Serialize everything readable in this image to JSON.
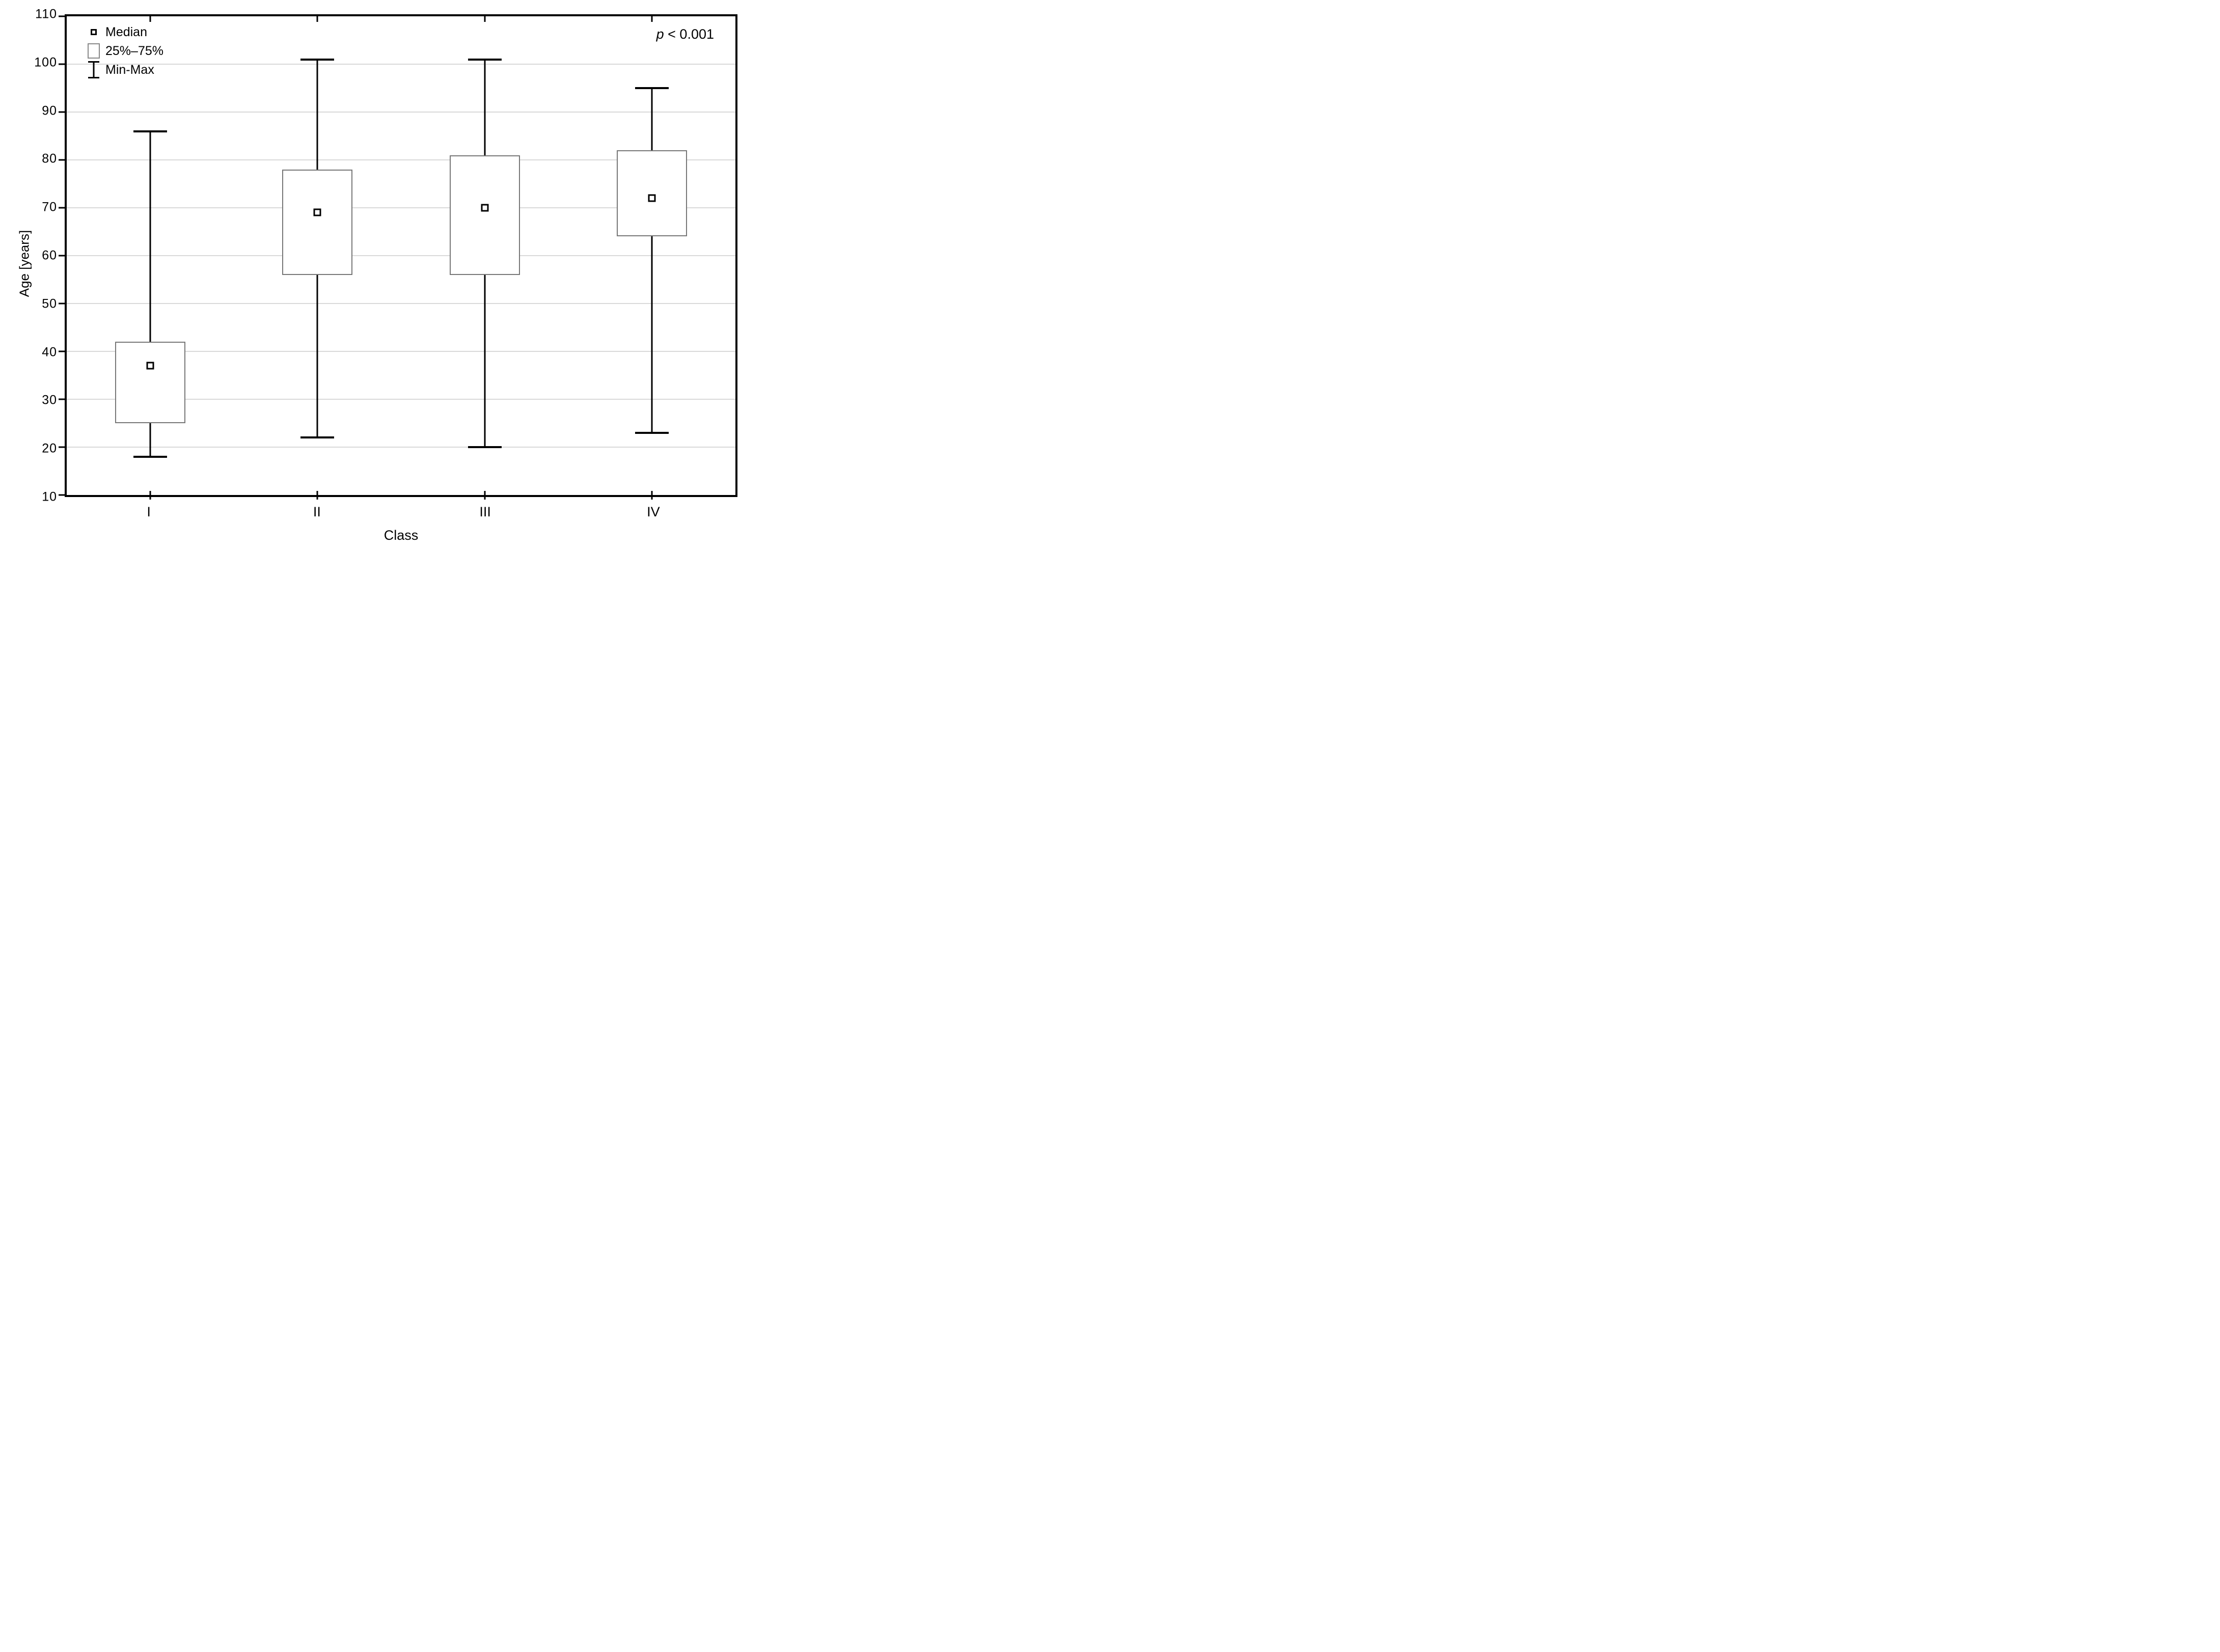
{
  "figure": {
    "background": "#ffffff",
    "annotation": {
      "text": "p < 0.001",
      "italic": "p",
      "rest": " < 0.001"
    },
    "legend": {
      "items": [
        {
          "marker": "median-square-marker",
          "label": "Median"
        },
        {
          "marker": "iqr-box-marker",
          "label": "25%–75%"
        },
        {
          "marker": "min-max-whisker-marker",
          "label": "Min-Max"
        }
      ]
    }
  },
  "chart_data": {
    "type": "boxplot",
    "title": "",
    "xlabel": "Class",
    "ylabel": "Age [years]",
    "ylim": [
      10,
      110
    ],
    "ytick_interval": 10,
    "yticks": [
      110,
      100,
      90,
      80,
      70,
      60,
      50,
      40,
      30,
      20,
      10
    ],
    "categories": [
      "I",
      "II",
      "III",
      "IV"
    ],
    "series": [
      {
        "category": "I",
        "min": 18,
        "q1": 25,
        "median": 37,
        "q3": 42,
        "max": 86
      },
      {
        "category": "II",
        "min": 22,
        "q1": 56,
        "median": 69,
        "q3": 78,
        "max": 101
      },
      {
        "category": "III",
        "min": 20,
        "q1": 56,
        "median": 70,
        "q3": 81,
        "max": 101
      },
      {
        "category": "IV",
        "min": 23,
        "q1": 64,
        "median": 72,
        "q3": 82,
        "max": 95
      }
    ],
    "grid": "horizontal",
    "legend_position": "top-left",
    "annotation": "p < 0.001",
    "colors": {
      "line": "#000000",
      "grid": "#d9d9d9",
      "box_border": "#777777",
      "background": "#ffffff"
    }
  }
}
